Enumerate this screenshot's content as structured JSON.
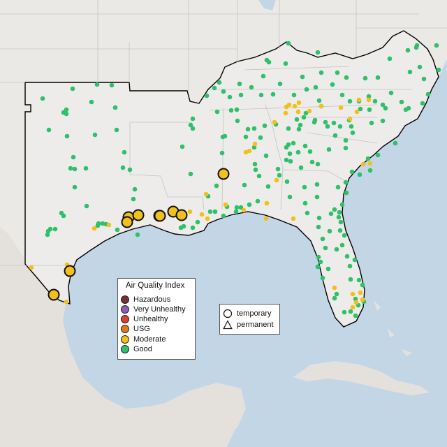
{
  "map": {
    "colors": {
      "water": "#c3d6e6",
      "land": "#ebe9e6",
      "land_other": "#e4e1dc",
      "region_fill": "#eeecea",
      "state_lines": "#c4c4c4",
      "region_outline": "#000000",
      "good": "#2fc16a",
      "moderate": "#f2c01c",
      "usg": "#e07a1f",
      "unhealthy": "#e03c31",
      "very_unhealthy": "#8f5bb8",
      "hazardous": "#7a2f2f",
      "marker_outline": "#111111"
    },
    "aqi_legend": {
      "title": "Air Quality Index",
      "items": [
        {
          "label": "Hazardous",
          "color_key": "hazardous"
        },
        {
          "label": "Very Unhealthy",
          "color_key": "very_unhealthy"
        },
        {
          "label": "Unhealthy",
          "color_key": "unhealthy"
        },
        {
          "label": "USG",
          "color_key": "usg"
        },
        {
          "label": "Moderate",
          "color_key": "moderate"
        },
        {
          "label": "Good",
          "color_key": "good"
        }
      ]
    },
    "type_legend": {
      "items": [
        {
          "label": "temporary",
          "shape": "circle-icon"
        },
        {
          "label": "permanent",
          "shape": "triangle-icon"
        }
      ]
    },
    "monitor_counts": {
      "good_small": 230,
      "moderate_small": 40,
      "moderate_large": 11
    }
  }
}
